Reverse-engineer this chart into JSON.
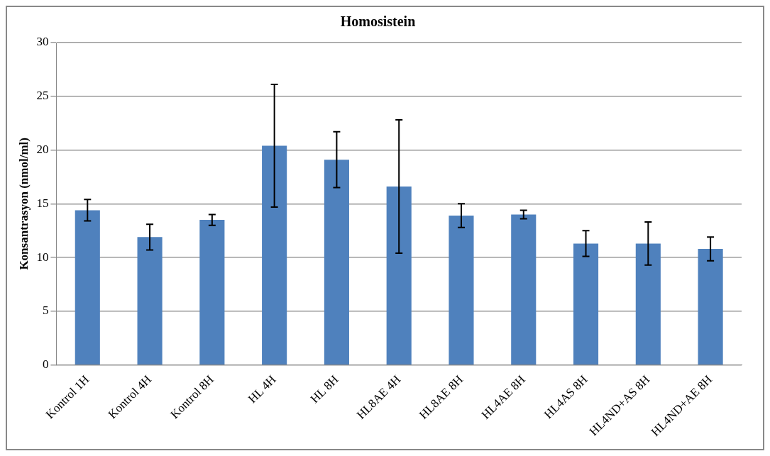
{
  "chart_data": {
    "type": "bar",
    "title": "Homosistein",
    "ylabel": "Konsantrasyon (nmol/ml)",
    "categories": [
      "Kontrol 1H",
      "Kontrol 4H",
      "Kontrol 8H",
      "HL 4H",
      "HL 8H",
      "HL8AE 4H",
      "HL8AE 8H",
      "HL4AE 8H",
      "HL4AS 8H",
      "HL4ND+AS 8H",
      "HL4ND+AE 8H"
    ],
    "values": [
      14.4,
      11.9,
      13.5,
      20.4,
      19.1,
      16.6,
      13.9,
      14.0,
      11.3,
      11.3,
      10.8
    ],
    "errors": [
      1.0,
      1.2,
      0.5,
      5.7,
      2.6,
      6.2,
      1.1,
      0.4,
      1.2,
      2.0,
      1.1
    ],
    "color": "#4f81bd",
    "ylim": [
      0,
      30
    ],
    "yticks": [
      0,
      5,
      10,
      15,
      20,
      25,
      30
    ],
    "grid": "y",
    "legend": false
  }
}
